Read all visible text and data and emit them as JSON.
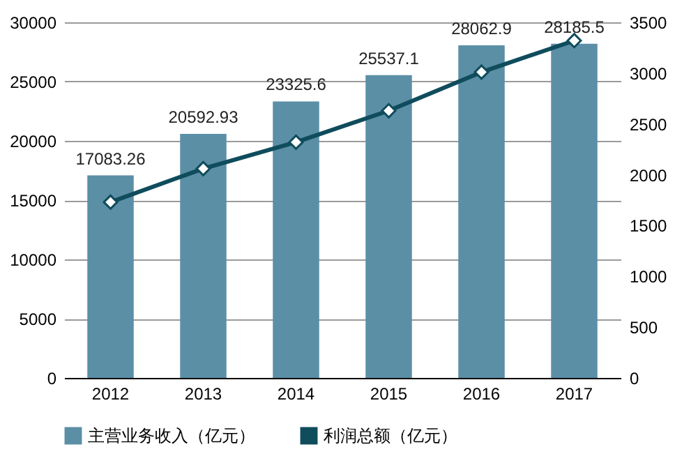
{
  "chart_data": {
    "type": "bar",
    "categories": [
      "2012",
      "2013",
      "2014",
      "2015",
      "2016",
      "2017"
    ],
    "series": [
      {
        "name": "主营业务收入（亿元）",
        "type": "bar",
        "color": "#5b8fa6",
        "values": [
          17083.26,
          20592.93,
          23325.6,
          25537.1,
          28062.9,
          28185.5
        ],
        "value_labels": [
          "17083.26",
          "20592.93",
          "23325.6",
          "25537.1",
          "28062.9",
          "28185.5"
        ]
      },
      {
        "name": "利润总额（亿元）",
        "type": "line",
        "axis": "y2",
        "color": "#0f4c5c",
        "marker": "diamond",
        "values": [
          1730,
          2060,
          2320,
          2630,
          3010,
          3320
        ]
      }
    ],
    "ylim": [
      0,
      30000
    ],
    "yticks": [
      0,
      5000,
      10000,
      15000,
      20000,
      25000,
      30000
    ],
    "y2lim": [
      0,
      3500
    ],
    "y2ticks": [
      0,
      500,
      1000,
      1500,
      2000,
      2500,
      3000,
      3500
    ],
    "grid": "y",
    "legend": "bottom"
  }
}
